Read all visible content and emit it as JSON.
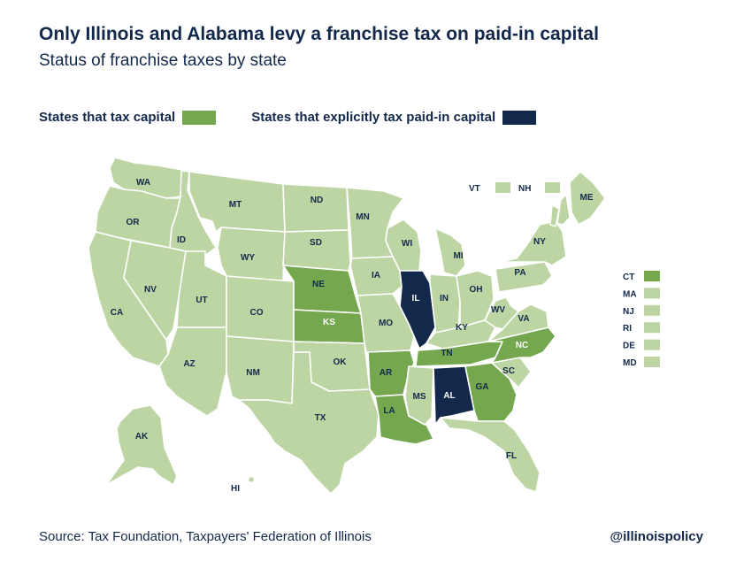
{
  "header": {
    "title": "Only Illinois and Alabama levy a franchise tax on paid-in capital",
    "subtitle": "Status of franchise taxes by state"
  },
  "legend": {
    "tax_capital": "States that tax capital",
    "paid_in_capital": "States that explicitly tax paid-in capital"
  },
  "colors": {
    "light": "#bcd5a3",
    "tax_capital": "#75a74f",
    "paid_in_capital": "#13294b",
    "label_dark": "#13294b",
    "label_light": "#ffffff"
  },
  "states": [
    {
      "abbr": "WA",
      "category": "none"
    },
    {
      "abbr": "OR",
      "category": "none"
    },
    {
      "abbr": "CA",
      "category": "none"
    },
    {
      "abbr": "NV",
      "category": "none"
    },
    {
      "abbr": "ID",
      "category": "none"
    },
    {
      "abbr": "MT",
      "category": "none"
    },
    {
      "abbr": "WY",
      "category": "none"
    },
    {
      "abbr": "UT",
      "category": "none"
    },
    {
      "abbr": "AZ",
      "category": "none"
    },
    {
      "abbr": "CO",
      "category": "none"
    },
    {
      "abbr": "NM",
      "category": "none"
    },
    {
      "abbr": "ND",
      "category": "none"
    },
    {
      "abbr": "SD",
      "category": "none"
    },
    {
      "abbr": "NE",
      "category": "tax_capital"
    },
    {
      "abbr": "KS",
      "category": "tax_capital"
    },
    {
      "abbr": "OK",
      "category": "none"
    },
    {
      "abbr": "TX",
      "category": "none"
    },
    {
      "abbr": "MN",
      "category": "none"
    },
    {
      "abbr": "IA",
      "category": "none"
    },
    {
      "abbr": "MO",
      "category": "none"
    },
    {
      "abbr": "AR",
      "category": "tax_capital"
    },
    {
      "abbr": "LA",
      "category": "tax_capital"
    },
    {
      "abbr": "WI",
      "category": "none"
    },
    {
      "abbr": "IL",
      "category": "paid_in_capital"
    },
    {
      "abbr": "MI",
      "category": "none"
    },
    {
      "abbr": "IN",
      "category": "none"
    },
    {
      "abbr": "OH",
      "category": "none"
    },
    {
      "abbr": "KY",
      "category": "none"
    },
    {
      "abbr": "TN",
      "category": "tax_capital"
    },
    {
      "abbr": "MS",
      "category": "none"
    },
    {
      "abbr": "AL",
      "category": "paid_in_capital"
    },
    {
      "abbr": "GA",
      "category": "tax_capital"
    },
    {
      "abbr": "FL",
      "category": "none"
    },
    {
      "abbr": "SC",
      "category": "none"
    },
    {
      "abbr": "NC",
      "category": "tax_capital"
    },
    {
      "abbr": "VA",
      "category": "none"
    },
    {
      "abbr": "WV",
      "category": "none"
    },
    {
      "abbr": "PA",
      "category": "none"
    },
    {
      "abbr": "NY",
      "category": "none"
    },
    {
      "abbr": "ME",
      "category": "none"
    },
    {
      "abbr": "AK",
      "category": "none"
    },
    {
      "abbr": "HI",
      "category": "none"
    }
  ],
  "northeast_top": [
    {
      "abbr": "VT",
      "category": "none"
    },
    {
      "abbr": "NH",
      "category": "none"
    }
  ],
  "northeast_side": [
    {
      "abbr": "CT",
      "category": "tax_capital"
    },
    {
      "abbr": "MA",
      "category": "none"
    },
    {
      "abbr": "NJ",
      "category": "none"
    },
    {
      "abbr": "RI",
      "category": "none"
    },
    {
      "abbr": "DE",
      "category": "none"
    },
    {
      "abbr": "MD",
      "category": "none"
    }
  ],
  "footer": {
    "source": "Source: Tax Foundation, Taxpayers' Federation of Illinois",
    "handle": "@illinoispolicy"
  }
}
